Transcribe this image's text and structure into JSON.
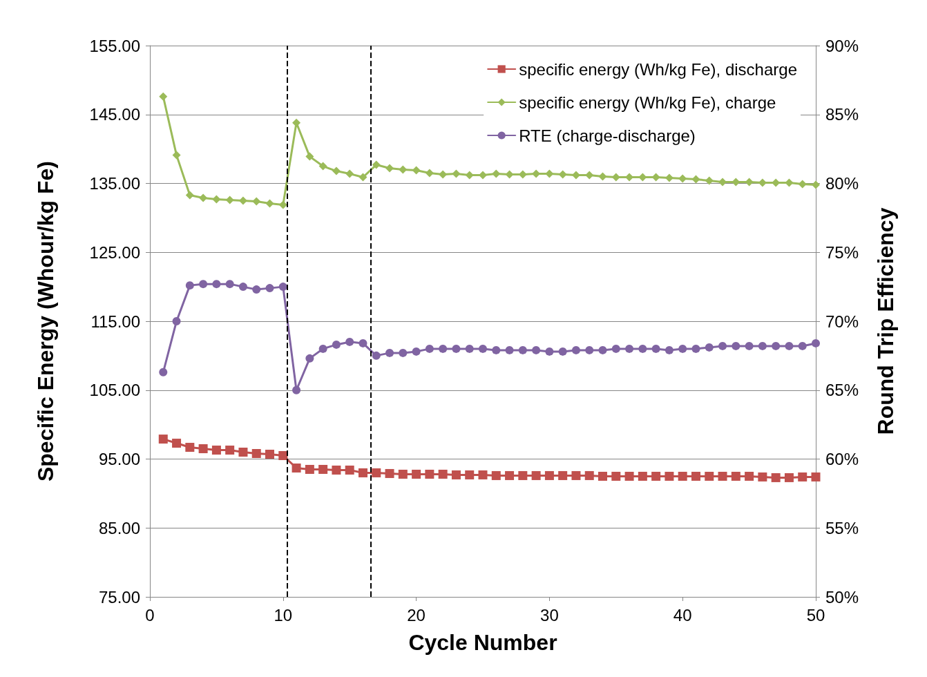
{
  "chart_data": {
    "type": "line",
    "xlabel": "Cycle Number",
    "ylabel": "Specific Energy (Whour/kg Fe)",
    "y2label": "Round Trip Efficiency",
    "x": [
      1,
      2,
      3,
      4,
      5,
      6,
      7,
      8,
      9,
      10,
      11,
      12,
      13,
      14,
      15,
      16,
      17,
      18,
      19,
      20,
      21,
      22,
      23,
      24,
      25,
      26,
      27,
      28,
      29,
      30,
      31,
      32,
      33,
      34,
      35,
      36,
      37,
      38,
      39,
      40,
      41,
      42,
      43,
      44,
      45,
      46,
      47,
      48,
      49,
      50
    ],
    "xlim": [
      0,
      50
    ],
    "xticks": [
      0,
      10,
      20,
      30,
      40,
      50
    ],
    "ylim": [
      75,
      155
    ],
    "yticks": [
      {
        "value": 75,
        "label": "75.00"
      },
      {
        "value": 85,
        "label": "85.00"
      },
      {
        "value": 95,
        "label": "95.00"
      },
      {
        "value": 105,
        "label": "105.00"
      },
      {
        "value": 115,
        "label": "115.00"
      },
      {
        "value": 125,
        "label": "125.00"
      },
      {
        "value": 135,
        "label": "135.00"
      },
      {
        "value": 145,
        "label": "145.00"
      },
      {
        "value": 155,
        "label": "155.00"
      }
    ],
    "y2lim": [
      50,
      90
    ],
    "y2ticks": [
      {
        "value": 50,
        "label": "50%"
      },
      {
        "value": 55,
        "label": "55%"
      },
      {
        "value": 60,
        "label": "60%"
      },
      {
        "value": 65,
        "label": "65%"
      },
      {
        "value": 70,
        "label": "70%"
      },
      {
        "value": 75,
        "label": "75%"
      },
      {
        "value": 80,
        "label": "80%"
      },
      {
        "value": 85,
        "label": "85%"
      },
      {
        "value": 90,
        "label": "90%"
      }
    ],
    "grid": "y",
    "legend": "top right",
    "line_style": "solid",
    "series": [
      {
        "name": "specific energy (Wh/kg Fe), discharge",
        "color": "#c0504d",
        "marker": "square",
        "values": [
          97.9,
          97.3,
          96.7,
          96.5,
          96.3,
          96.3,
          96.0,
          95.8,
          95.7,
          95.5,
          93.7,
          93.5,
          93.5,
          93.4,
          93.4,
          93.0,
          93.0,
          92.9,
          92.8,
          92.8,
          92.8,
          92.8,
          92.7,
          92.7,
          92.7,
          92.6,
          92.6,
          92.6,
          92.6,
          92.6,
          92.6,
          92.6,
          92.6,
          92.5,
          92.5,
          92.5,
          92.5,
          92.5,
          92.5,
          92.5,
          92.5,
          92.5,
          92.5,
          92.5,
          92.5,
          92.4,
          92.3,
          92.3,
          92.4,
          92.4
        ]
      },
      {
        "name": "specific energy (Wh/kg Fe), charge",
        "color": "#9bbb59",
        "marker": "diamond",
        "values": [
          147.6,
          139.1,
          133.3,
          132.9,
          132.7,
          132.6,
          132.5,
          132.4,
          132.1,
          131.9,
          143.8,
          138.9,
          137.5,
          136.8,
          136.4,
          135.9,
          137.7,
          137.2,
          137.0,
          136.9,
          136.5,
          136.3,
          136.4,
          136.2,
          136.2,
          136.4,
          136.3,
          136.3,
          136.4,
          136.4,
          136.3,
          136.2,
          136.2,
          136.0,
          135.9,
          135.9,
          135.9,
          135.9,
          135.8,
          135.7,
          135.6,
          135.4,
          135.2,
          135.2,
          135.2,
          135.1,
          135.1,
          135.1,
          134.9,
          134.8
        ]
      },
      {
        "name": "RTE (charge-discharge)",
        "color": "#8064a2",
        "marker": "circle",
        "axis": "y2",
        "values": [
          66.3,
          70.0,
          72.6,
          72.7,
          72.7,
          72.7,
          72.5,
          72.3,
          72.4,
          72.5,
          65.0,
          67.3,
          68.0,
          68.3,
          68.5,
          68.4,
          67.5,
          67.7,
          67.7,
          67.8,
          68.0,
          68.0,
          68.0,
          68.0,
          68.0,
          67.9,
          67.9,
          67.9,
          67.9,
          67.8,
          67.8,
          67.9,
          67.9,
          67.9,
          68.0,
          68.0,
          68.0,
          68.0,
          67.9,
          68.0,
          68.0,
          68.1,
          68.2,
          68.2,
          68.2,
          68.2,
          68.2,
          68.2,
          68.2,
          68.4
        ]
      }
    ],
    "ref_lines": [
      {
        "axis": "x",
        "value": 10.3,
        "color": "#000000",
        "line_style": "dashed"
      },
      {
        "axis": "x",
        "value": 16.6,
        "color": "#000000",
        "line_style": "dashed"
      }
    ]
  }
}
